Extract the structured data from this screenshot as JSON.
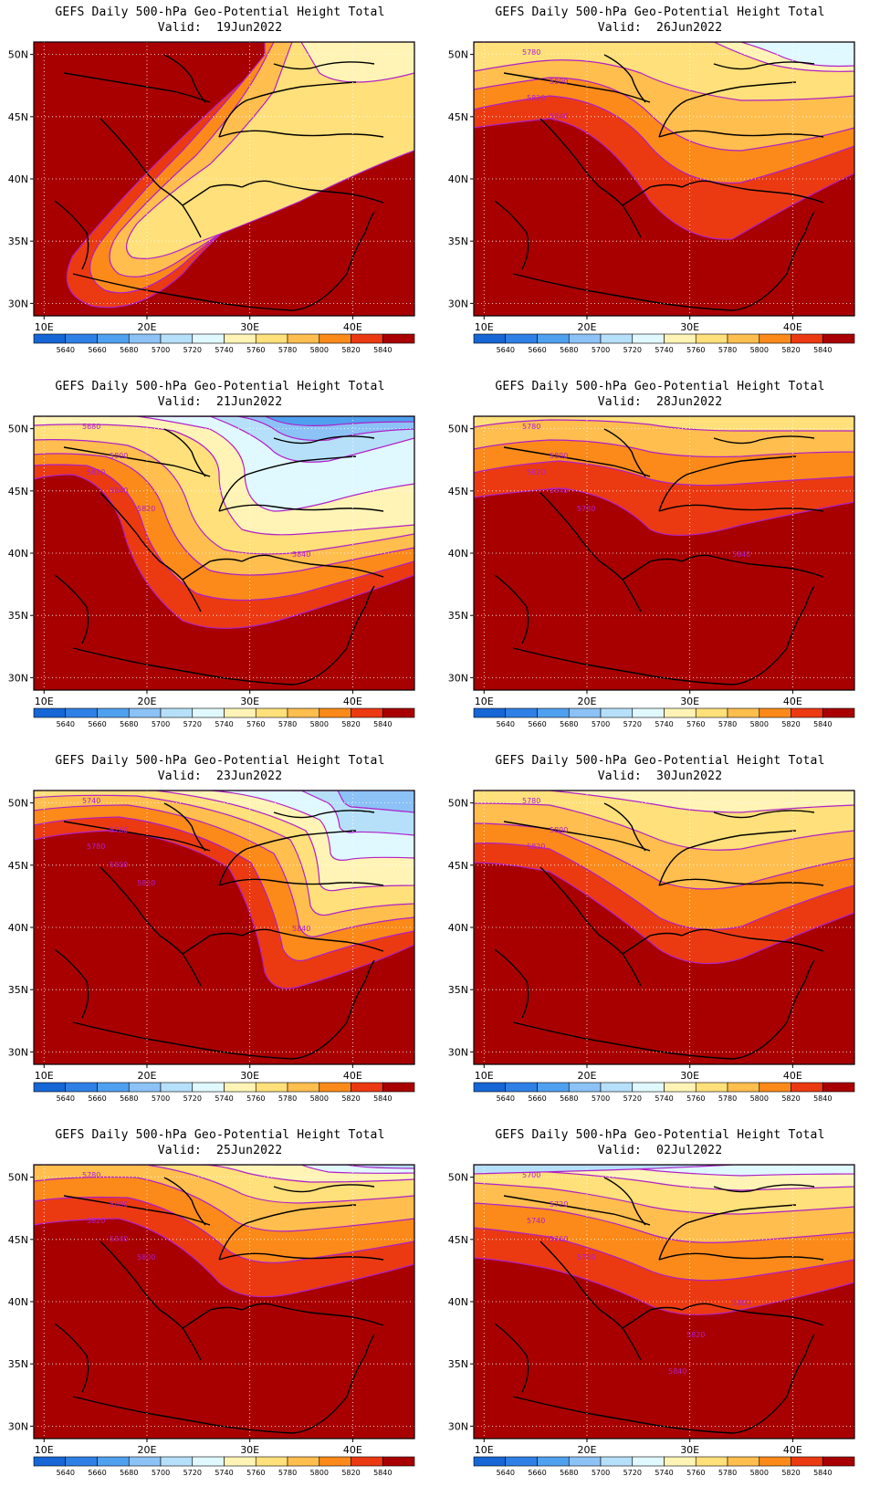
{
  "common": {
    "title": "GEFS Daily 500-hPa Geo-Potential Height Total",
    "valid_prefix": "Valid:",
    "lon_ticks": [
      "10E",
      "20E",
      "30E",
      "40E"
    ],
    "lat_ticks": [
      "30N",
      "35N",
      "40N",
      "45N",
      "50N"
    ],
    "colorbar_labels": [
      "5640",
      "5660",
      "5680",
      "5700",
      "5720",
      "5740",
      "5760",
      "5780",
      "5800",
      "5820",
      "5840"
    ],
    "colorbar_colors": [
      "#1666d6",
      "#2f80e6",
      "#50a0f0",
      "#8cc2f6",
      "#b6e0fa",
      "#e0f8ff",
      "#fff4b6",
      "#ffe07a",
      "#ffbe4e",
      "#fb8a1a",
      "#eb3a12",
      "#a80000"
    ],
    "contour_color": "#b020c8",
    "map_frame_color": "#000000"
  },
  "panels": [
    {
      "valid": "19Jun2022",
      "contour_labels": []
    },
    {
      "valid": "26Jun2022",
      "contour_labels": [
        "5780",
        "5800",
        "5820",
        "5840"
      ]
    },
    {
      "valid": "21Jun2022",
      "contour_labels": [
        "5680",
        "5800",
        "5820",
        "5840",
        "5820",
        "5840"
      ]
    },
    {
      "valid": "28Jun2022",
      "contour_labels": [
        "5780",
        "5800",
        "5820",
        "5840",
        "5780",
        "5840"
      ]
    },
    {
      "valid": "23Jun2022",
      "contour_labels": [
        "5740",
        "5760",
        "5780",
        "5800",
        "5820",
        "5840"
      ]
    },
    {
      "valid": "30Jun2022",
      "contour_labels": [
        "5780",
        "5800",
        "5820"
      ]
    },
    {
      "valid": "25Jun2022",
      "contour_labels": [
        "5780",
        "5800",
        "5820",
        "5840",
        "5800"
      ]
    },
    {
      "valid": "02Jul2022",
      "contour_labels": [
        "5700",
        "5720",
        "5740",
        "5760",
        "5780",
        "5800",
        "5820",
        "5840"
      ]
    }
  ]
}
